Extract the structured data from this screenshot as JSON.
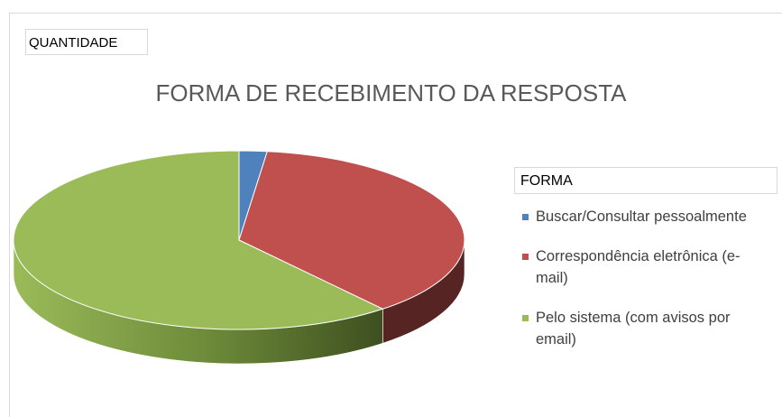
{
  "chart_data": {
    "type": "pie3d",
    "title": "FORMA DE RECEBIMENTO DA RESPOSTA",
    "field_label": "QUANTIDADE",
    "legend_title": "FORMA",
    "categories": [
      "Buscar/Consultar pessoalmente",
      "Correspondência eletrônica (e-mail)",
      "Pelo sistema (com avisos por email)"
    ],
    "values": [
      2,
      37,
      61
    ],
    "colors": [
      "#4f81bd",
      "#c0504d",
      "#9bbb59"
    ],
    "legend": "right"
  }
}
